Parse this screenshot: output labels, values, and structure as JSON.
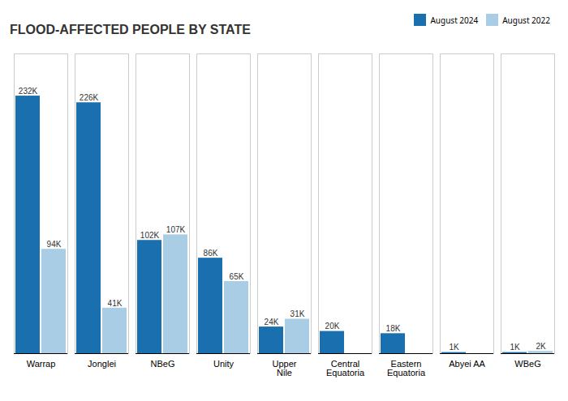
{
  "chart_data": {
    "type": "bar",
    "title": "FLOOD-AFFECTED PEOPLE BY STATE",
    "categories": [
      "Warrap",
      "Jonglei",
      "NBeG",
      "Unity",
      "Upper\nNile",
      "Central\nEquatoria",
      "Eastern\nEquatoria",
      "Abyei AA",
      "WBeG"
    ],
    "series": [
      {
        "name": "August 2024",
        "color": "#1a6faf",
        "values": [
          232,
          226,
          102,
          86,
          24,
          20,
          18,
          1,
          1
        ],
        "value_labels": [
          "232K",
          "226K",
          "102K",
          "86K",
          "24K",
          "20K",
          "18K",
          "1K",
          "1K"
        ]
      },
      {
        "name": "August 2022",
        "color": "#a8cde4",
        "values": [
          94,
          41,
          107,
          65,
          31,
          0,
          0,
          0,
          2
        ],
        "value_labels": [
          "94K",
          "41K",
          "107K",
          "65K",
          "31K",
          null,
          null,
          null,
          "2K"
        ]
      }
    ],
    "ylim": [
      0,
      270
    ],
    "grid": false,
    "legend": "upper right",
    "data_labels": true,
    "tick_labels": "x"
  }
}
